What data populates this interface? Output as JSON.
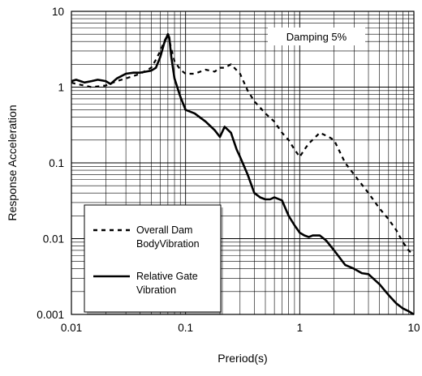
{
  "chart_data": {
    "type": "line",
    "xlabel": "Preriod(s)",
    "ylabel": "Response Acceleration",
    "xscale": "log",
    "yscale": "log",
    "xlim": [
      0.01,
      10
    ],
    "ylim": [
      0.001,
      10
    ],
    "grid": true,
    "annotation": "Damping 5%",
    "legend_position": "bottom-left",
    "x_tick_labels": [
      "0.01",
      "0.1",
      "1",
      "10"
    ],
    "y_tick_labels": [
      "0.001",
      "0.01",
      "0.1",
      "1",
      "10"
    ],
    "x_ticks": [
      0.01,
      0.1,
      1,
      10
    ],
    "y_ticks": [
      0.001,
      0.01,
      0.1,
      1,
      10
    ],
    "series": [
      {
        "name": "Overall Dam BodyVibration",
        "legend_lines": [
          "Overall Dam",
          "BodyVibration"
        ],
        "style": "dashed",
        "x": [
          0.01,
          0.011,
          0.013,
          0.015,
          0.02,
          0.025,
          0.03,
          0.035,
          0.04,
          0.05,
          0.055,
          0.06,
          0.065,
          0.07,
          0.075,
          0.08,
          0.09,
          0.1,
          0.12,
          0.15,
          0.18,
          0.2,
          0.22,
          0.25,
          0.3,
          0.35,
          0.4,
          0.5,
          0.6,
          0.7,
          0.8,
          0.9,
          1.0,
          1.1,
          1.2,
          1.5,
          1.8,
          2.0,
          2.5,
          3.0,
          4.0,
          5.0,
          6.0,
          7.0,
          8.0,
          9.0,
          10.0
        ],
        "y": [
          1.15,
          1.1,
          1.05,
          1.0,
          1.05,
          1.2,
          1.3,
          1.4,
          1.5,
          1.8,
          2.3,
          3.0,
          4.0,
          5.0,
          3.2,
          2.2,
          1.7,
          1.5,
          1.5,
          1.7,
          1.6,
          1.8,
          1.8,
          2.0,
          1.5,
          0.9,
          0.65,
          0.45,
          0.35,
          0.25,
          0.2,
          0.15,
          0.12,
          0.15,
          0.18,
          0.25,
          0.22,
          0.2,
          0.1,
          0.07,
          0.04,
          0.025,
          0.018,
          0.013,
          0.009,
          0.007,
          0.006
        ]
      },
      {
        "name": "Relative Gate Vibration",
        "legend_lines": [
          "Relative Gate",
          "Vibration"
        ],
        "style": "solid",
        "x": [
          0.01,
          0.011,
          0.012,
          0.013,
          0.015,
          0.017,
          0.02,
          0.022,
          0.025,
          0.03,
          0.035,
          0.04,
          0.045,
          0.05,
          0.055,
          0.06,
          0.065,
          0.07,
          0.072,
          0.075,
          0.08,
          0.09,
          0.1,
          0.12,
          0.15,
          0.18,
          0.2,
          0.22,
          0.25,
          0.28,
          0.3,
          0.35,
          0.4,
          0.45,
          0.5,
          0.55,
          0.6,
          0.7,
          0.8,
          0.9,
          1.0,
          1.1,
          1.2,
          1.3,
          1.5,
          1.7,
          2.0,
          2.5,
          3.0,
          3.5,
          4.0,
          5.0,
          6.0,
          7.0,
          8.0,
          9.0,
          10.0
        ],
        "y": [
          1.2,
          1.25,
          1.2,
          1.15,
          1.2,
          1.25,
          1.2,
          1.1,
          1.3,
          1.5,
          1.55,
          1.55,
          1.6,
          1.65,
          1.8,
          2.5,
          3.8,
          5.0,
          4.5,
          2.5,
          1.3,
          0.75,
          0.5,
          0.45,
          0.35,
          0.27,
          0.22,
          0.3,
          0.25,
          0.15,
          0.12,
          0.07,
          0.04,
          0.035,
          0.033,
          0.033,
          0.035,
          0.032,
          0.02,
          0.015,
          0.012,
          0.011,
          0.0105,
          0.011,
          0.011,
          0.0095,
          0.007,
          0.0045,
          0.004,
          0.0035,
          0.0034,
          0.0025,
          0.0018,
          0.0014,
          0.0012,
          0.0011,
          0.001
        ]
      }
    ]
  }
}
